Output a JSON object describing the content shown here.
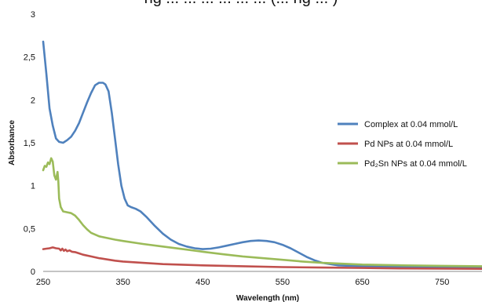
{
  "caption_fragment": "ng ... ... ... ... ... ... (... ng ... )",
  "chart_data": {
    "type": "line",
    "title": "",
    "xlabel": "Wavelength (nm)",
    "ylabel": "Absorbance",
    "xlim": [
      250,
      800
    ],
    "ylim": [
      0,
      3
    ],
    "x_ticks": [
      250,
      350,
      450,
      550,
      650,
      750
    ],
    "y_ticks": [
      0,
      0.5,
      1,
      1.5,
      2,
      2.5,
      3
    ],
    "y_tick_labels": [
      "0",
      "0,5",
      "1",
      "1,5",
      "2",
      "2,5",
      "3"
    ],
    "legend_position": "right",
    "grid": false,
    "series": [
      {
        "name": "Complex at 0.04 mmol/L",
        "color": "#4f81bd",
        "points": [
          [
            250,
            2.68
          ],
          [
            254,
            2.3
          ],
          [
            258,
            1.9
          ],
          [
            262,
            1.7
          ],
          [
            266,
            1.55
          ],
          [
            270,
            1.51
          ],
          [
            275,
            1.5
          ],
          [
            280,
            1.53
          ],
          [
            285,
            1.57
          ],
          [
            290,
            1.64
          ],
          [
            295,
            1.73
          ],
          [
            300,
            1.85
          ],
          [
            305,
            1.97
          ],
          [
            310,
            2.08
          ],
          [
            315,
            2.17
          ],
          [
            320,
            2.2
          ],
          [
            325,
            2.2
          ],
          [
            328,
            2.18
          ],
          [
            332,
            2.1
          ],
          [
            336,
            1.85
          ],
          [
            340,
            1.55
          ],
          [
            344,
            1.25
          ],
          [
            348,
            1.0
          ],
          [
            352,
            0.85
          ],
          [
            356,
            0.77
          ],
          [
            360,
            0.75
          ],
          [
            366,
            0.73
          ],
          [
            372,
            0.7
          ],
          [
            380,
            0.63
          ],
          [
            390,
            0.53
          ],
          [
            400,
            0.44
          ],
          [
            410,
            0.37
          ],
          [
            420,
            0.32
          ],
          [
            430,
            0.29
          ],
          [
            440,
            0.27
          ],
          [
            450,
            0.26
          ],
          [
            460,
            0.265
          ],
          [
            470,
            0.28
          ],
          [
            480,
            0.3
          ],
          [
            490,
            0.32
          ],
          [
            500,
            0.34
          ],
          [
            510,
            0.355
          ],
          [
            520,
            0.36
          ],
          [
            530,
            0.355
          ],
          [
            540,
            0.34
          ],
          [
            550,
            0.31
          ],
          [
            560,
            0.27
          ],
          [
            570,
            0.22
          ],
          [
            580,
            0.17
          ],
          [
            590,
            0.13
          ],
          [
            600,
            0.1
          ],
          [
            620,
            0.07
          ],
          [
            650,
            0.06
          ],
          [
            700,
            0.055
          ],
          [
            750,
            0.05
          ],
          [
            800,
            0.05
          ]
        ]
      },
      {
        "name": "Pd NPs at 0.04 mmol/L",
        "color": "#c0504d",
        "points": [
          [
            250,
            0.26
          ],
          [
            254,
            0.265
          ],
          [
            258,
            0.27
          ],
          [
            262,
            0.28
          ],
          [
            266,
            0.27
          ],
          [
            270,
            0.265
          ],
          [
            272,
            0.245
          ],
          [
            274,
            0.265
          ],
          [
            276,
            0.24
          ],
          [
            278,
            0.255
          ],
          [
            280,
            0.235
          ],
          [
            283,
            0.245
          ],
          [
            286,
            0.23
          ],
          [
            290,
            0.225
          ],
          [
            295,
            0.21
          ],
          [
            300,
            0.195
          ],
          [
            310,
            0.175
          ],
          [
            320,
            0.155
          ],
          [
            330,
            0.14
          ],
          [
            340,
            0.125
          ],
          [
            350,
            0.115
          ],
          [
            375,
            0.1
          ],
          [
            400,
            0.085
          ],
          [
            450,
            0.07
          ],
          [
            500,
            0.06
          ],
          [
            550,
            0.05
          ],
          [
            600,
            0.045
          ],
          [
            650,
            0.04
          ],
          [
            700,
            0.035
          ],
          [
            750,
            0.033
          ],
          [
            800,
            0.03
          ]
        ]
      },
      {
        "name": "Pd₂Sn NPs at 0.04 mmol/L",
        "color": "#9bbb59",
        "points": [
          [
            250,
            1.18
          ],
          [
            252,
            1.23
          ],
          [
            254,
            1.22
          ],
          [
            256,
            1.27
          ],
          [
            258,
            1.25
          ],
          [
            260,
            1.32
          ],
          [
            262,
            1.28
          ],
          [
            264,
            1.12
          ],
          [
            266,
            1.07
          ],
          [
            268,
            1.16
          ],
          [
            269,
            1.05
          ],
          [
            270,
            0.85
          ],
          [
            272,
            0.75
          ],
          [
            275,
            0.7
          ],
          [
            280,
            0.69
          ],
          [
            285,
            0.68
          ],
          [
            290,
            0.65
          ],
          [
            295,
            0.6
          ],
          [
            300,
            0.54
          ],
          [
            305,
            0.49
          ],
          [
            310,
            0.45
          ],
          [
            320,
            0.41
          ],
          [
            330,
            0.39
          ],
          [
            340,
            0.37
          ],
          [
            350,
            0.355
          ],
          [
            375,
            0.32
          ],
          [
            400,
            0.29
          ],
          [
            425,
            0.26
          ],
          [
            450,
            0.23
          ],
          [
            475,
            0.2
          ],
          [
            500,
            0.175
          ],
          [
            525,
            0.155
          ],
          [
            550,
            0.135
          ],
          [
            575,
            0.115
          ],
          [
            600,
            0.1
          ],
          [
            625,
            0.09
          ],
          [
            650,
            0.08
          ],
          [
            700,
            0.07
          ],
          [
            750,
            0.065
          ],
          [
            800,
            0.06
          ]
        ]
      }
    ]
  }
}
